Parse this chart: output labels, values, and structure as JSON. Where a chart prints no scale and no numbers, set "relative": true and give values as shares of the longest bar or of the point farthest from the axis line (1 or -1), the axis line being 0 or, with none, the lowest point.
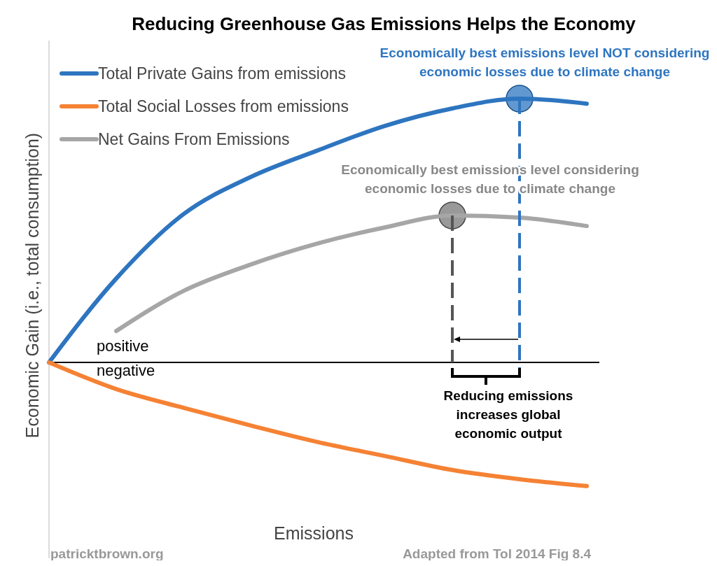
{
  "chart_data": {
    "type": "line",
    "title": "Reducing Greenhouse Gas Emissions Helps the Economy",
    "xlabel": "Emissions",
    "ylabel": "Economic Gain (i.e., total consumption)",
    "relative": true,
    "legend": "top left",
    "categories": [
      null,
      null,
      null,
      null,
      null,
      null,
      null,
      null,
      null
    ],
    "series": [
      {
        "name": "Total Private Gains from emissions",
        "color": "#2e75c0",
        "values": [
          0,
          0.318,
          0.562,
          0.703,
          0.804,
          0.897,
          0.963,
          1.0,
          0.981
        ]
      },
      {
        "name": "Total Social Losses from emissions",
        "color": "#f58234",
        "values": [
          0,
          -0.101,
          -0.172,
          -0.239,
          -0.302,
          -0.355,
          -0.408,
          -0.443,
          -0.469
        ]
      },
      {
        "name": "Net Gains From Emissions",
        "color": "#a6a6a6",
        "values": [
          null,
          0.119,
          0.271,
          0.371,
          0.451,
          0.512,
          0.557,
          0.549,
          0.517
        ]
      }
    ],
    "annotations": [
      "Economically best emissions level NOT considering economic losses due to climate change",
      "Economically best emissions level considering economic losses due to climate change",
      "positive",
      "negative",
      "Reducing emissions increases global economic output",
      "patricktbrown.org",
      "Adapted from Tol 2014 Fig 8.4"
    ]
  }
}
